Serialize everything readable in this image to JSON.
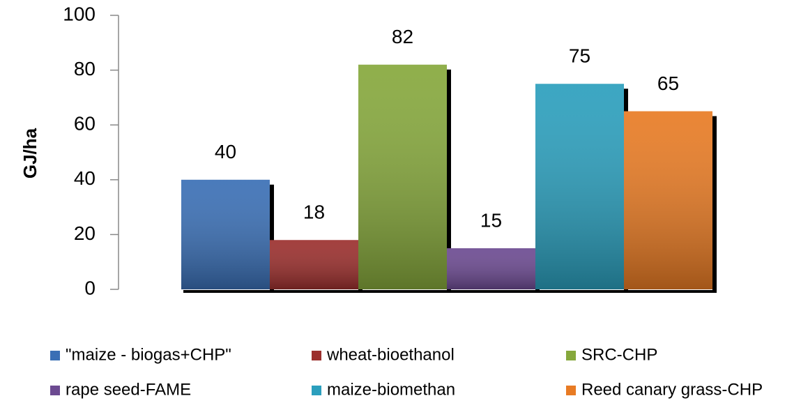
{
  "chart_data": {
    "type": "bar",
    "y_label": "GJ/ha",
    "annotation": ";",
    "categories": [
      null
    ],
    "series": [
      {
        "name": "\"maize - biogas+CHP\"",
        "color": "#3a6fb5",
        "values": [
          40
        ]
      },
      {
        "name": "wheat-bioethanol",
        "color": "#9b2f2d",
        "values": [
          18
        ]
      },
      {
        "name": "SRC-CHP",
        "color": "#86a83c",
        "values": [
          82
        ]
      },
      {
        "name": "rape seed-FAME",
        "color": "#6c4a91",
        "values": [
          15
        ]
      },
      {
        "name": "maize-biomethan",
        "color": "#2b9fbd",
        "values": [
          75
        ]
      },
      {
        "name": "Reed canary grass-CHP",
        "color": "#e87b24",
        "values": [
          65
        ]
      }
    ],
    "ylim": [
      0,
      100
    ],
    "yticks": [
      0,
      20,
      40,
      60,
      80,
      100
    ],
    "legend": "bottom"
  }
}
